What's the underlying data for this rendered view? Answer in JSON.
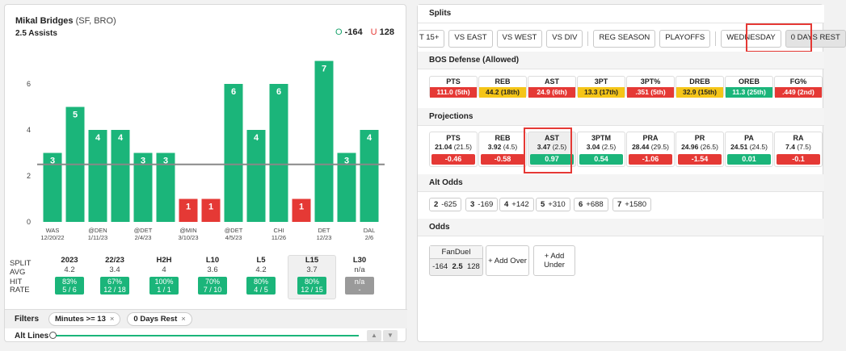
{
  "player": {
    "name": "Mikal Bridges",
    "pos": "(SF, BRO)",
    "prop": "2.5 Assists",
    "over_label": "O",
    "over_odds": "-164",
    "under_label": "U",
    "under_odds": "128"
  },
  "chart_data": {
    "type": "bar",
    "line": 2.5,
    "ylim": [
      0,
      8
    ],
    "yticks": [
      0,
      2,
      4,
      6
    ],
    "values": [
      3,
      5,
      4,
      4,
      3,
      3,
      1,
      1,
      6,
      4,
      6,
      1,
      7,
      3,
      4
    ],
    "tick_labels": [
      {
        "i": 0,
        "a": "WAS",
        "b": "12/20/22"
      },
      {
        "i": 2,
        "a": "@DEN",
        "b": "1/11/23"
      },
      {
        "i": 4,
        "a": "@DET",
        "b": "2/4/23"
      },
      {
        "i": 6,
        "a": "@MIN",
        "b": "3/10/23"
      },
      {
        "i": 8,
        "a": "@DET",
        "b": "4/5/23"
      },
      {
        "i": 10,
        "a": "CHI",
        "b": "11/26"
      },
      {
        "i": 12,
        "a": "DET",
        "b": "12/23"
      },
      {
        "i": 14,
        "a": "DAL",
        "b": "2/6"
      }
    ],
    "colors": {
      "over": "#1bb57a",
      "under": "#e53935",
      "line": "#888888"
    }
  },
  "stats": {
    "labels": {
      "split": "SPLIT",
      "avg": "AVG",
      "hit": "HIT",
      "rate": "RATE"
    },
    "cols": [
      {
        "h": "2023",
        "avg": "4.2",
        "p1": "83%",
        "p2": "5 / 6"
      },
      {
        "h": "22/23",
        "avg": "3.4",
        "p1": "67%",
        "p2": "12 / 18"
      },
      {
        "h": "H2H",
        "avg": "4",
        "p1": "100%",
        "p2": "1 / 1"
      },
      {
        "h": "L10",
        "avg": "3.6",
        "p1": "70%",
        "p2": "7 / 10"
      },
      {
        "h": "L5",
        "avg": "4.2",
        "p1": "80%",
        "p2": "4 / 5"
      },
      {
        "h": "L15",
        "avg": "3.7",
        "p1": "80%",
        "p2": "12 / 15"
      },
      {
        "h": "L30",
        "avg": "n/a",
        "p1": "n/a",
        "p2": "-"
      }
    ]
  },
  "filters": {
    "label": "Filters",
    "chip1": "Minutes >= 13",
    "chip2": "0 Days Rest",
    "close": "×"
  },
  "alt_lines": {
    "label": "Alt Lines",
    "up": "▲",
    "down": "▼"
  },
  "splits": {
    "title": "Splits",
    "buttons": [
      "T 15+",
      "VS EAST",
      "VS WEST",
      "VS DIV",
      "REG SEASON",
      "PLAYOFFS",
      "WEDNESDAY",
      "0 DAYS REST"
    ]
  },
  "defense": {
    "title": "BOS Defense (Allowed)",
    "cells": [
      {
        "t": "PTS",
        "v": "111.0 (5th)",
        "c": "red"
      },
      {
        "t": "REB",
        "v": "44.2 (18th)",
        "c": "yellow"
      },
      {
        "t": "AST",
        "v": "24.9 (6th)",
        "c": "red"
      },
      {
        "t": "3PT",
        "v": "13.3 (17th)",
        "c": "yellow"
      },
      {
        "t": "3PT%",
        "v": ".351 (5th)",
        "c": "red"
      },
      {
        "t": "DREB",
        "v": "32.9 (15th)",
        "c": "yellow"
      },
      {
        "t": "OREB",
        "v": "11.3 (25th)",
        "c": "green"
      },
      {
        "t": "FG%",
        "v": ".449 (2nd)",
        "c": "red"
      }
    ]
  },
  "projections": {
    "title": "Projections",
    "cells": [
      {
        "t": "PTS",
        "p": "21.04",
        "l": "(21.5)",
        "d": "-0.46",
        "c": "red"
      },
      {
        "t": "REB",
        "p": "3.92",
        "l": "(4.5)",
        "d": "-0.58",
        "c": "red"
      },
      {
        "t": "AST",
        "p": "3.47",
        "l": "(2.5)",
        "d": "0.97",
        "c": "green"
      },
      {
        "t": "3PTM",
        "p": "3.04",
        "l": "(2.5)",
        "d": "0.54",
        "c": "green"
      },
      {
        "t": "PRA",
        "p": "28.44",
        "l": "(29.5)",
        "d": "-1.06",
        "c": "red"
      },
      {
        "t": "PR",
        "p": "24.96",
        "l": "(26.5)",
        "d": "-1.54",
        "c": "red"
      },
      {
        "t": "PA",
        "p": "24.51",
        "l": "(24.5)",
        "d": "0.01",
        "c": "green"
      },
      {
        "t": "RA",
        "p": "7.4",
        "l": "(7.5)",
        "d": "-0.1",
        "c": "red"
      }
    ]
  },
  "alt_odds": {
    "title": "Alt Odds",
    "items": [
      {
        "n": "2",
        "o": "-625"
      },
      {
        "n": "3",
        "o": "-169"
      },
      {
        "n": "4",
        "o": "+142"
      },
      {
        "n": "5",
        "o": "+310"
      },
      {
        "n": "6",
        "o": "+688"
      },
      {
        "n": "7",
        "o": "+1580"
      }
    ]
  },
  "odds": {
    "title": "Odds",
    "book": "FanDuel",
    "over": "-164",
    "line": "2.5",
    "under": "128",
    "add_over": "+ Add Over",
    "add_under": "+ Add Under"
  }
}
